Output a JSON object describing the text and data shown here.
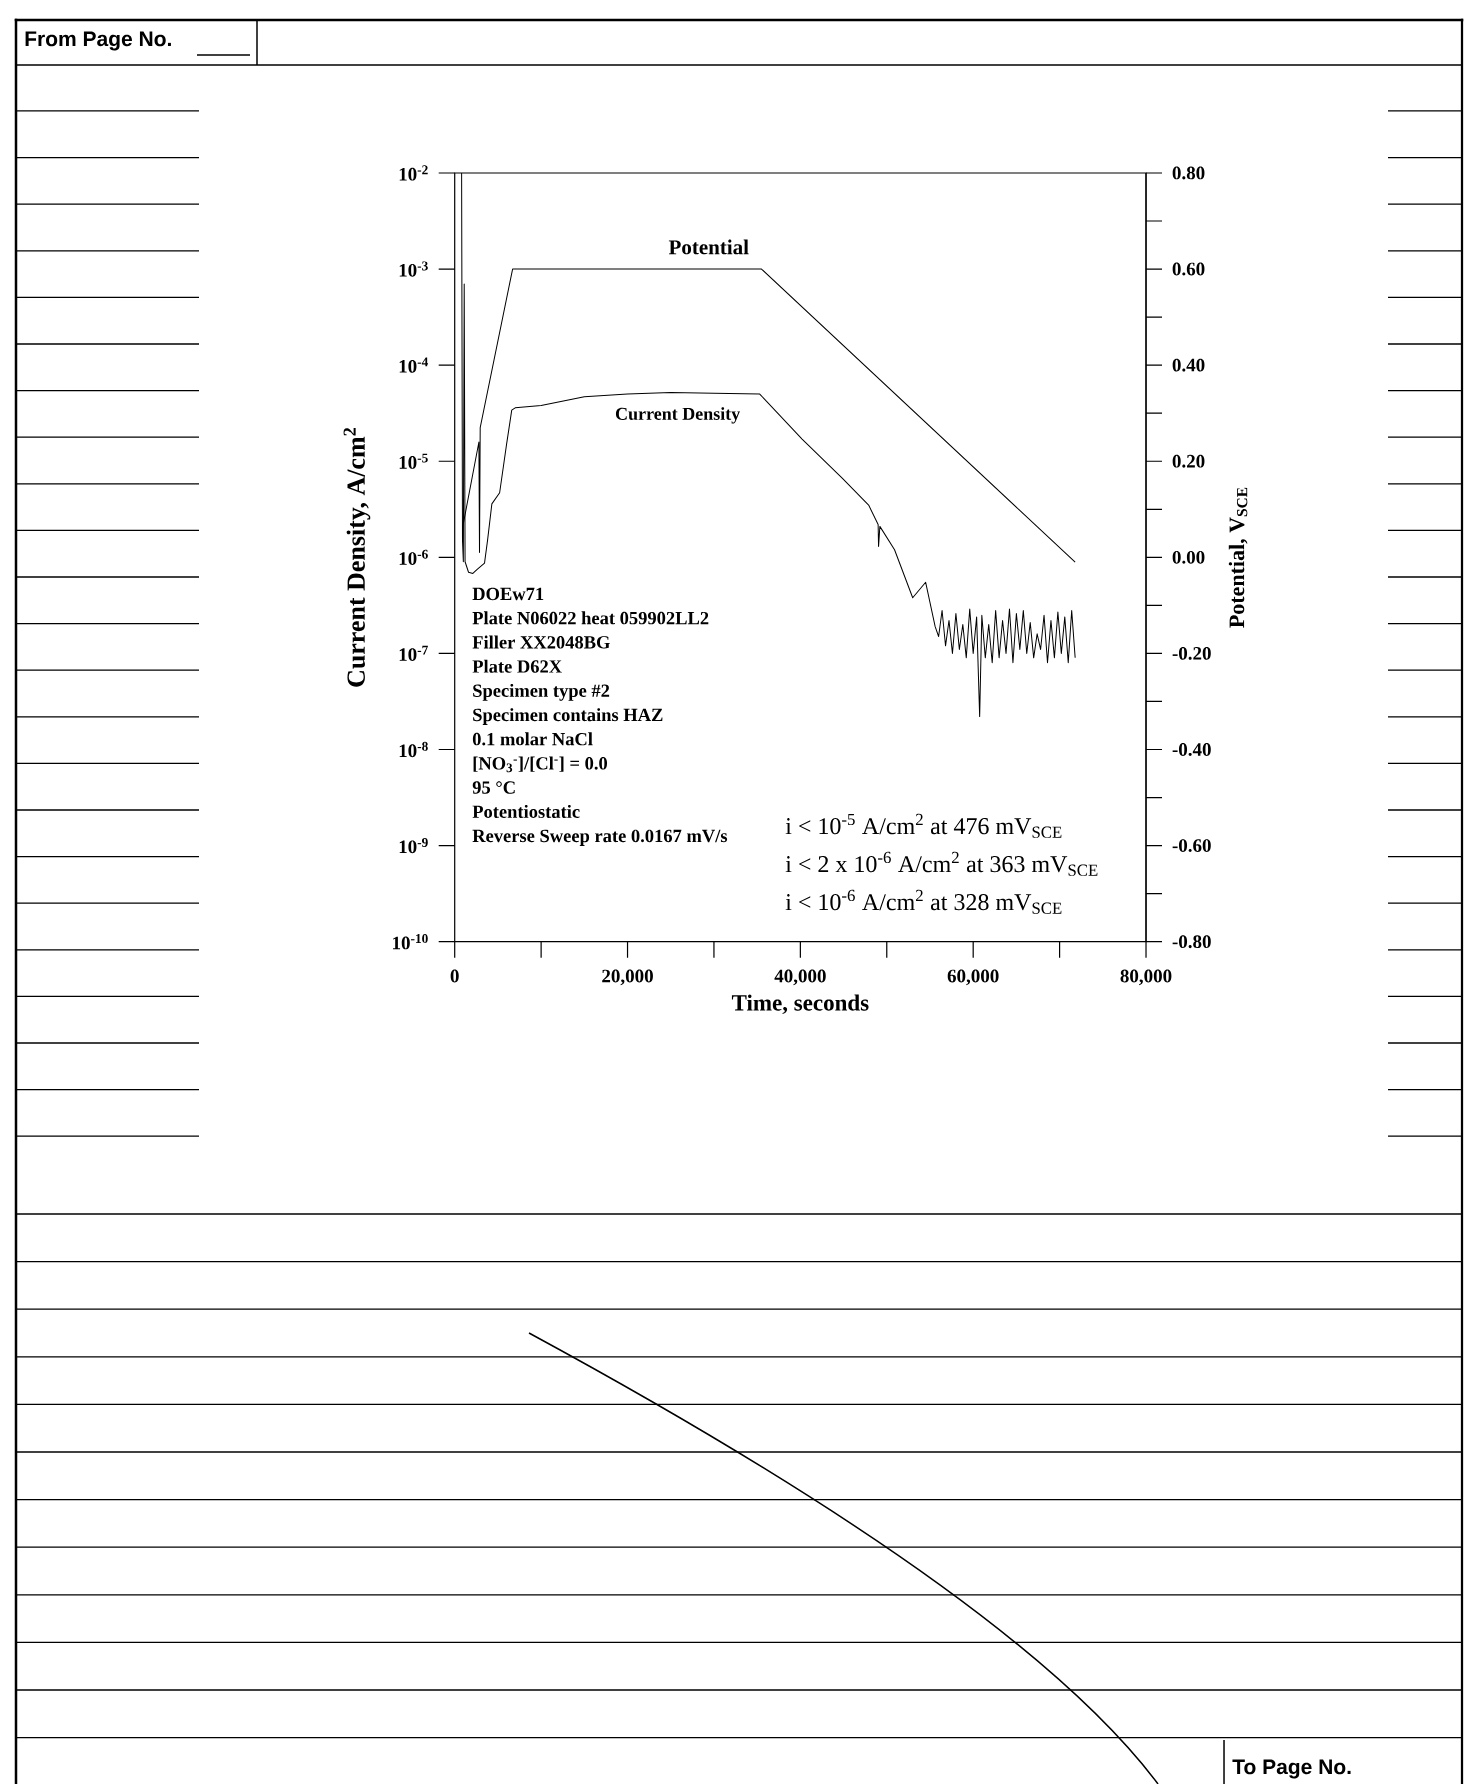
{
  "chart_data": {
    "type": "line",
    "xlabel": "Time, seconds",
    "ylabel": "Current Density, A/cm$^{2}$",
    "y2label": "Potential, V$_{SCE}$",
    "annotations": [
      "From Page No.",
      "DOEw71",
      "Plate N06022 heat 059902LL2",
      "Filler XX2048BG",
      "Plate D62X",
      "Specimen type #2",
      "Specimen contains HAZ",
      "0.1 molar NaCl",
      "[NO$_{3}$$^{-}$]/[Cl$^{-}$] = 0.0",
      "95 °C",
      "Potentiostatic",
      "Reverse Sweep rate 0.0167 mV/s",
      "i < 10$^{-5}$ A/cm$^{2}$ at 476 mV$_{SCE}$",
      "i < 2 x 10$^{-6}$ A/cm$^{2}$ at 363 mV$_{SCE}$",
      "i < 10$^{-6}$ A/cm$^{2}$ at 328 mV$_{SCE}$",
      "To Page No."
    ],
    "xlim": [
      0,
      80000
    ],
    "xticks": [
      0,
      {
        "value": 10000,
        "label": null
      },
      {
        "value": 20000,
        "label": "20,000"
      },
      {
        "value": 30000,
        "label": null
      },
      {
        "value": 40000,
        "label": "40,000"
      },
      {
        "value": 50000,
        "label": null
      },
      {
        "value": 60000,
        "label": "60,000"
      },
      {
        "value": 70000,
        "label": null
      },
      {
        "value": 80000,
        "label": "80,000"
      }
    ],
    "ylim": [
      1e-10,
      0.01
    ],
    "log": "y",
    "yticks": [
      {
        "value": 1e-10,
        "label": "10$^{-10}$"
      },
      {
        "value": 1e-09,
        "label": "10$^{-9}$"
      },
      {
        "value": 1e-08,
        "label": "10$^{-8}$"
      },
      {
        "value": 1e-07,
        "label": "10$^{-7}$"
      },
      {
        "value": 1e-06,
        "label": "10$^{-6}$"
      },
      {
        "value": 1e-05,
        "label": "10$^{-5}$"
      },
      {
        "value": 0.0001,
        "label": "10$^{-4}$"
      },
      {
        "value": 0.001,
        "label": "10$^{-3}$"
      },
      {
        "value": 0.01,
        "label": "10$^{-2}$"
      }
    ],
    "y2lim": [
      -0.8,
      0.8
    ],
    "y2ticks": [
      {
        "value": -0.8,
        "label": "-0.80"
      },
      {
        "value": -0.7,
        "label": null
      },
      {
        "value": -0.6,
        "label": "-0.60"
      },
      {
        "value": -0.5,
        "label": null
      },
      {
        "value": -0.4,
        "label": "-0.40"
      },
      {
        "value": -0.3,
        "label": null
      },
      {
        "value": -0.2,
        "label": "-0.20"
      },
      {
        "value": -0.1,
        "label": null
      },
      {
        "value": 0,
        "label": "0.00"
      },
      {
        "value": 0.1,
        "label": null
      },
      {
        "value": 0.2,
        "label": "0.20"
      },
      {
        "value": 0.3,
        "label": null
      },
      {
        "value": 0.4,
        "label": "0.40"
      },
      {
        "value": 0.5,
        "label": null
      },
      {
        "value": 0.6,
        "label": "0.60"
      },
      {
        "value": 0.7,
        "label": null
      },
      {
        "value": 0.8,
        "label": "0.80"
      }
    ],
    "marker": "none",
    "line_style": "solid",
    "series": [
      {
        "name": "Current Density",
        "color": "#000000",
        "x": [
          800,
          900,
          1000,
          1100,
          1200,
          1600,
          2100,
          2600,
          3450,
          3800,
          4300,
          5200,
          6000,
          6600,
          7000,
          10000,
          15000,
          20000,
          25000,
          30000,
          35300,
          40200,
          44900,
          47900,
          49000,
          49050,
          49200,
          50900,
          53000,
          54500,
          55600,
          56000,
          56400,
          56800,
          57200,
          57600,
          58000,
          58400,
          58800,
          59200,
          59600,
          60000,
          60400,
          60750,
          61000,
          61400,
          61800,
          62200,
          62600,
          63000,
          63400,
          63800,
          64200,
          64600,
          65000,
          65400,
          65800,
          66200,
          66600,
          67000,
          67400,
          67800,
          68200,
          68600,
          69000,
          69400,
          69800,
          70200,
          70600,
          71000,
          71400,
          71800
        ],
        "values": [
          0.01,
          1.5e-06,
          9e-07,
          0.0007,
          9e-07,
          7e-07,
          6.8e-07,
          7.5e-07,
          8.7e-07,
          1.5e-06,
          3.6e-06,
          4.7e-06,
          1.5e-05,
          3.4e-05,
          3.6e-05,
          3.8e-05,
          4.7e-05,
          5e-05,
          5.2e-05,
          5.1e-05,
          5e-05,
          1.7e-05,
          6.6e-06,
          3.5e-06,
          2.2e-06,
          1.3e-06,
          2.1e-06,
          1.2e-06,
          3.8e-07,
          5.5e-07,
          1.9e-07,
          1.5e-07,
          2.8e-07,
          1.2e-07,
          2.2e-07,
          1e-07,
          2.6e-07,
          1.1e-07,
          2e-07,
          9e-08,
          2.9e-07,
          1e-07,
          2.4e-07,
          2.2e-08,
          2.5e-07,
          9e-08,
          2e-07,
          8e-08,
          2.8e-07,
          9e-08,
          2.2e-07,
          1e-07,
          2.9e-07,
          8e-08,
          2.6e-07,
          1.1e-07,
          2.8e-07,
          1e-07,
          2.1e-07,
          9e-08,
          1.6e-07,
          1.1e-07,
          2.5e-07,
          8e-08,
          2.2e-07,
          9e-08,
          2.7e-07,
          1e-07,
          2.4e-07,
          8e-08,
          2.8e-07,
          9e-08
        ]
      },
      {
        "name": "Potential",
        "color": "#000000",
        "axis": "y2",
        "x": [
          1000,
          2800,
          2870,
          2950,
          6700,
          35500,
          71800
        ],
        "values": [
          0.07,
          0.24,
          0.01,
          0.27,
          0.6,
          0.6,
          -0.01
        ]
      }
    ]
  }
}
